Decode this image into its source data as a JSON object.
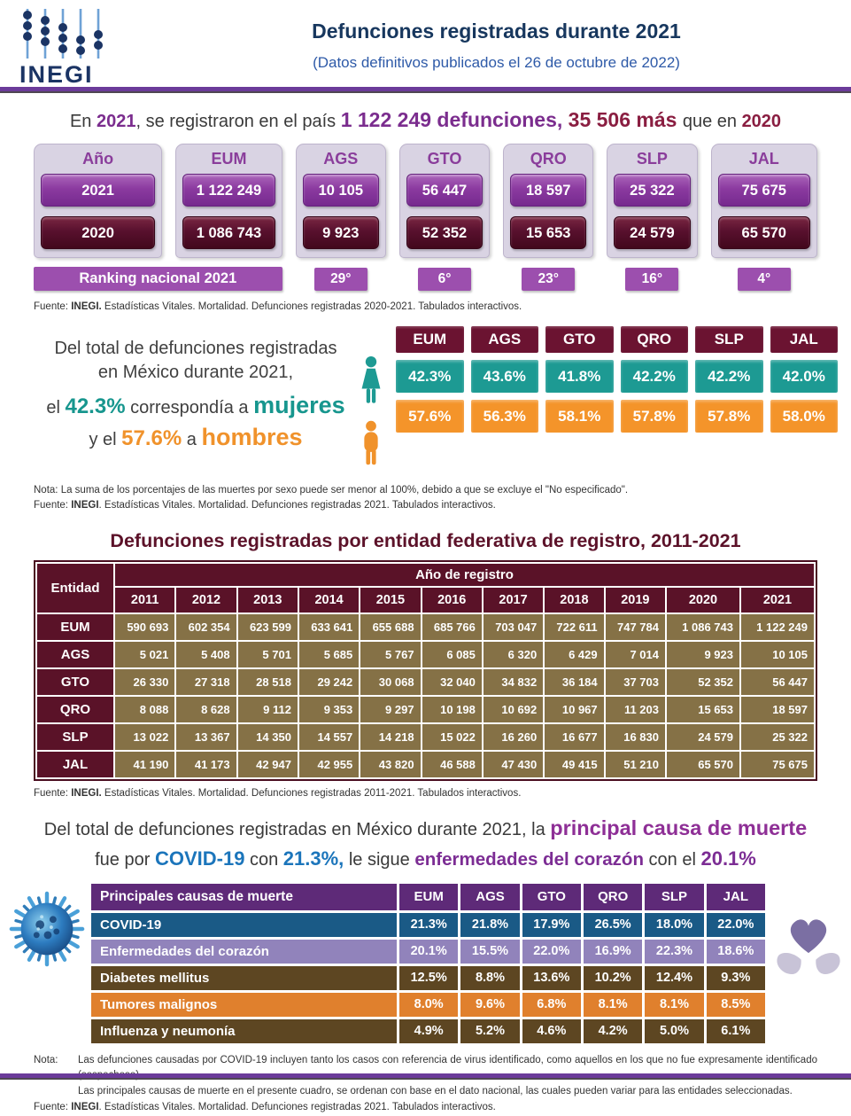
{
  "header": {
    "logo": "INEGI",
    "title": "Defunciones registradas durante 2021",
    "subtitle": "(Datos definitivos publicados el 26 de octubre de 2022)"
  },
  "summary": {
    "a": "En ",
    "y2021": "2021",
    "b": ", se registraron en el país ",
    "total": "1 122 249 defunciones, ",
    "inc": "35 506 más ",
    "c": "que en ",
    "y2020": "2020"
  },
  "annual_table": {
    "columns": [
      "Año",
      "EUM",
      "AGS",
      "GTO",
      "QRO",
      "SLP",
      "JAL"
    ],
    "values_2021": [
      "2021",
      "1 122 249",
      "10 105",
      "56 447",
      "18 597",
      "25 322",
      "75 675"
    ],
    "values_2020": [
      "2020",
      "1 086 743",
      "9 923",
      "52 352",
      "15 653",
      "24 579",
      "65 570"
    ],
    "ranking_label": "Ranking nacional 2021",
    "rankings": [
      "29°",
      "6°",
      "23°",
      "16°",
      "4°"
    ],
    "source": {
      "prefix": "Fuente: ",
      "bold": "INEGI.",
      "rest": " Estadísticas Vitales. Mortalidad. Defunciones registradas 2020-2021. Tabulados interactivos."
    }
  },
  "sex_section": {
    "line1": "Del total de defunciones registradas",
    "line2": "en México durante 2021,",
    "l3a": "el ",
    "female_pct": "42.3%",
    "l3b": " correspondía a ",
    "female_label": "mujeres",
    "l4a": "y el ",
    "male_pct": "57.6%",
    "l4b": " a ",
    "male_label": "hombres",
    "columns": [
      "EUM",
      "AGS",
      "GTO",
      "QRO",
      "SLP",
      "JAL"
    ],
    "female_values": [
      "42.3%",
      "43.6%",
      "41.8%",
      "42.2%",
      "42.2%",
      "42.0%"
    ],
    "male_values": [
      "57.6%",
      "56.3%",
      "58.1%",
      "57.8%",
      "57.8%",
      "58.0%"
    ],
    "note_label": "Nota: ",
    "note_text": "La suma de los porcentajes de las muertes por sexo puede ser menor al 100%, debido a que se excluye el \"No especificado\".",
    "source": {
      "prefix": "Fuente: ",
      "bold": "INEGI",
      "rest": ". Estadísticas Vitales. Mortalidad. Defunciones registradas 2021. Tabulados interactivos."
    }
  },
  "entity_table": {
    "title": "Defunciones registradas por entidad federativa de registro, 2011-2021",
    "entity_header": "Entidad",
    "year_group_header": "Año de registro",
    "years": [
      "2011",
      "2012",
      "2013",
      "2014",
      "2015",
      "2016",
      "2017",
      "2018",
      "2019",
      "2020",
      "2021"
    ],
    "rows": [
      {
        "entity": "EUM",
        "values": [
          "590 693",
          "602 354",
          "623 599",
          "633 641",
          "655 688",
          "685 766",
          "703 047",
          "722 611",
          "747 784",
          "1 086 743",
          "1 122 249"
        ]
      },
      {
        "entity": "AGS",
        "values": [
          "5 021",
          "5 408",
          "5 701",
          "5 685",
          "5 767",
          "6 085",
          "6 320",
          "6 429",
          "7 014",
          "9 923",
          "10 105"
        ]
      },
      {
        "entity": "GTO",
        "values": [
          "26 330",
          "27 318",
          "28 518",
          "29 242",
          "30 068",
          "32 040",
          "34 832",
          "36 184",
          "37 703",
          "52 352",
          "56 447"
        ]
      },
      {
        "entity": "QRO",
        "values": [
          "8 088",
          "8 628",
          "9 112",
          "9 353",
          "9 297",
          "10 198",
          "10 692",
          "10 967",
          "11 203",
          "15 653",
          "18 597"
        ]
      },
      {
        "entity": "SLP",
        "values": [
          "13 022",
          "13 367",
          "14 350",
          "14 557",
          "14 218",
          "15 022",
          "16 260",
          "16 677",
          "16 830",
          "24 579",
          "25 322"
        ]
      },
      {
        "entity": "JAL",
        "values": [
          "41 190",
          "41 173",
          "42 947",
          "42 955",
          "43 820",
          "46 588",
          "47 430",
          "49 415",
          "51 210",
          "65 570",
          "75 675"
        ]
      }
    ],
    "source": {
      "prefix": "Fuente: ",
      "bold": "INEGI.",
      "rest": " Estadísticas Vitales. Mortalidad. Defunciones registradas 2011-2021. Tabulados interactivos."
    }
  },
  "causes_statement": {
    "pre": "Del total de defunciones registradas en México durante 2021, la ",
    "highlight": "principal causa de muerte",
    "l2a": "fue por ",
    "covid": "COVID-19",
    "l2b": " con ",
    "covid_pct": "21.3%,",
    "l2c": " le sigue ",
    "heart": "enfermedades del corazón",
    "l2d": " con el ",
    "heart_pct": "20.1%"
  },
  "causes_table": {
    "header": "Principales causas de muerte",
    "columns": [
      "EUM",
      "AGS",
      "GTO",
      "QRO",
      "SLP",
      "JAL"
    ],
    "rows": [
      {
        "cause": "COVID-19",
        "values": [
          "21.3%",
          "21.8%",
          "17.9%",
          "26.5%",
          "18.0%",
          "22.0%"
        ],
        "color": "#1a5a86"
      },
      {
        "cause": "Enfermedades del corazón",
        "values": [
          "20.1%",
          "15.5%",
          "22.0%",
          "16.9%",
          "22.3%",
          "18.6%"
        ],
        "color": "#9183bb"
      },
      {
        "cause": "Diabetes mellitus",
        "values": [
          "12.5%",
          "8.8%",
          "13.6%",
          "10.2%",
          "12.4%",
          "9.3%"
        ],
        "color": "#5d4622"
      },
      {
        "cause": "Tumores malignos",
        "values": [
          "8.0%",
          "9.6%",
          "6.8%",
          "8.1%",
          "8.1%",
          "8.5%"
        ],
        "color": "#e0802d"
      },
      {
        "cause": "Influenza y neumonía",
        "values": [
          "4.9%",
          "5.2%",
          "4.6%",
          "4.2%",
          "5.0%",
          "6.1%"
        ],
        "color": "#5d4622"
      }
    ],
    "note_label": "Nota: ",
    "note1": "Las defunciones causadas por COVID-19 incluyen tanto los casos con referencia de virus identificado, como aquellos en los que no fue expresamente identificado (sospechoso).",
    "note2": "Las principales causas de muerte en el presente cuadro, se ordenan con base en el dato nacional, las cuales pueden variar para las entidades seleccionadas.",
    "source": {
      "prefix": "Fuente: ",
      "bold": "INEGI",
      "rest": ". Estadísticas Vitales. Mortalidad. Defunciones registradas 2021. Tabulados interactivos."
    }
  },
  "colors": {
    "header_navy": "#17375e",
    "subtitle_blue": "#2e5aa8",
    "divider_purple": "#6b3b9a",
    "accent_purple": "#8a3d9b",
    "button_purple": "#8b3aa0",
    "button_maroon": "#58102e",
    "ranking_purple": "#9c4fae",
    "maroon_header": "#6b1331",
    "female_teal": "#1d9a93",
    "male_orange": "#f4942a",
    "entity_maroon": "#5a1228",
    "entity_gold": "#857146",
    "causes_header_purple": "#5e2a78",
    "covid_blue_row": "#1a5a86",
    "heart_lavender_row": "#9183bb",
    "brown_row": "#5d4622",
    "orange_row": "#e0802d",
    "statement_purple": "#8e2f96",
    "statement_blue": "#1b75bb"
  }
}
